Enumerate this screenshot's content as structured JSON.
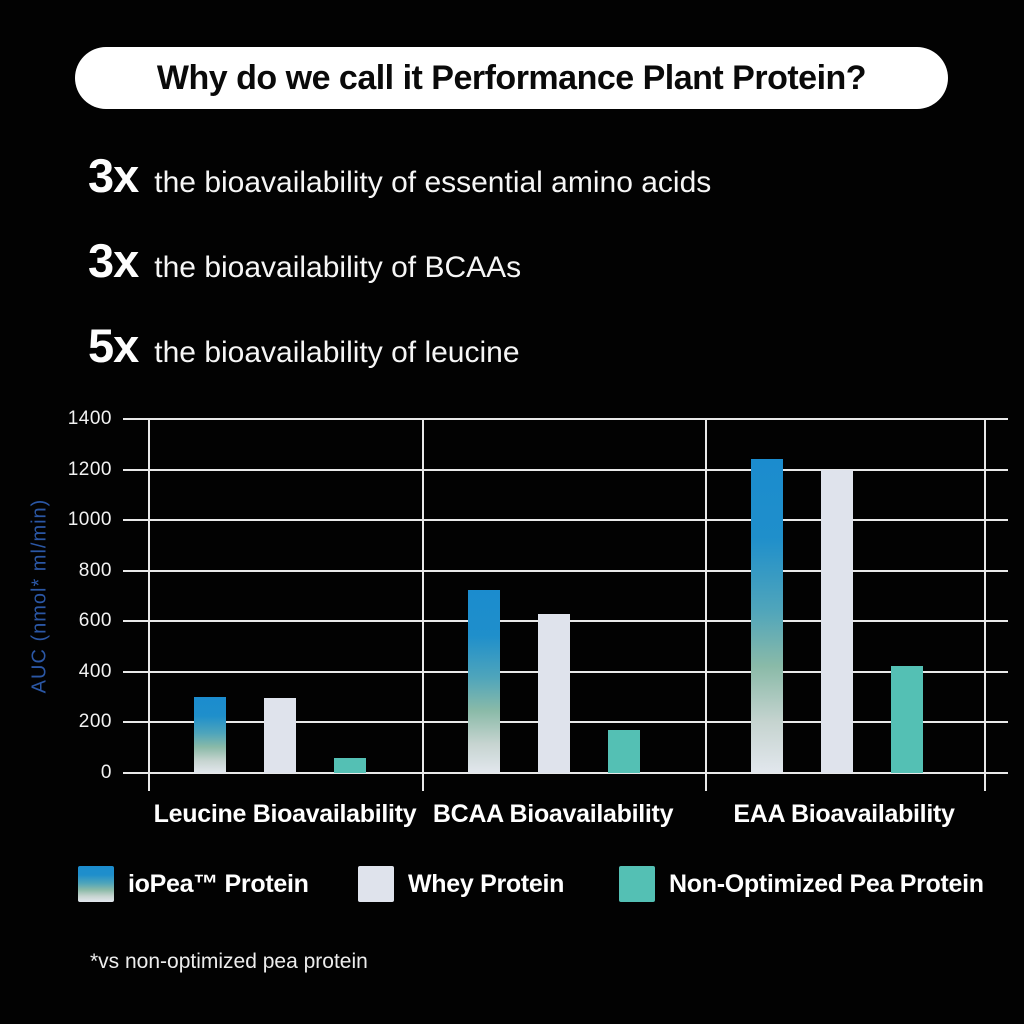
{
  "header": {
    "title": "Why do we call it Performance Plant Protein?"
  },
  "benefits": [
    {
      "multiplier": "3x",
      "text": "the bioavailability of essential amino acids"
    },
    {
      "multiplier": "3x",
      "text": "the bioavailability of BCAAs"
    },
    {
      "multiplier": "5x",
      "text": "the bioavailability of leucine"
    }
  ],
  "chart_data": {
    "type": "bar",
    "title": "",
    "ylabel": "AUC (nmol* ml/min)",
    "ylim": [
      0,
      1400
    ],
    "yticks": [
      0,
      200,
      400,
      600,
      800,
      1000,
      1200,
      1400
    ],
    "grid": true,
    "legend_position": "bottom",
    "categories": [
      "Leucine Bioavailability",
      "BCAA Bioavailability",
      "EAA Bioavailability"
    ],
    "series": [
      {
        "name": "ioPea™ Protein",
        "values": [
          300,
          725,
          1240
        ],
        "gradient": [
          "#1B8CCE 0%",
          "#1F8FCB 25%",
          "#4FA5BB 48%",
          "#8ABAA8 66%",
          "#C6D4D0 84%",
          "#E2E7ED 100%"
        ]
      },
      {
        "name": "Whey Protein",
        "values": [
          295,
          630,
          1200
        ],
        "color": "#DFE3EC"
      },
      {
        "name": "Non-Optimized Pea Protein",
        "values": [
          60,
          170,
          425
        ],
        "color": "#54C0B4"
      }
    ]
  },
  "footnote": "*vs non-optimized pea protein",
  "colors": {
    "background": "#020202",
    "pill_background": "#FFFFFF",
    "pill_text": "#0A0A0A",
    "grid": "#E8E8E8",
    "axis_label_blue": "#2B57A5",
    "text_white": "#F6F6F6"
  }
}
